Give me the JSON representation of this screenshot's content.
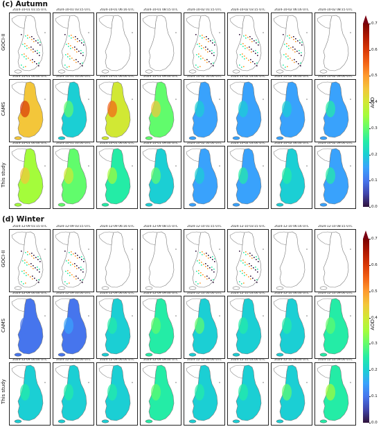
{
  "cbar": {
    "label": "AOD",
    "ticks": [
      "0.0",
      "0.1",
      "0.2",
      "0.3",
      "0.4",
      "0.5",
      "0.6",
      "0.7"
    ],
    "range": [
      0,
      0.7
    ],
    "extend": "max",
    "colormap": [
      "#30123b",
      "#4145ab",
      "#4675ed",
      "#39a2fc",
      "#1bcfd4",
      "#24eca6",
      "#61fc6c",
      "#a4fc3b",
      "#d1e834",
      "#f3c63a",
      "#fe9b2d",
      "#f36315",
      "#d93806",
      "#b11901",
      "#7a0403"
    ]
  },
  "autumn": {
    "title": "(c) Autumn",
    "goci_label": "GOCI-II",
    "cams_label": "CAMS",
    "study_label": "This study",
    "goci_times": [
      "2024-10-01 01:15 UTC",
      "2024-10-01 03:15 UTC",
      "2024-10-01 06:16 UTC",
      "2024-10-01 08:15 UTC",
      "2024-10-02 01:15 UTC",
      "2024-10-02 03:15 UTC",
      "2024-10-02 06:16 UTC",
      "2024-10-02 08:15 UTC"
    ],
    "model_times": [
      "2024-10-01 00:00 UTC",
      "2024-10-01 03:00 UTC",
      "2024-10-01 06:00 UTC",
      "2024-10-01 09:00 UTC",
      "2024-10-02 00:00 UTC",
      "2024-10-02 03:00 UTC",
      "2024-10-02 06:00 UTC",
      "2024-10-02 09:00 UTC"
    ]
  },
  "winter": {
    "title": "(d) Winter",
    "goci_label": "GOCI-II",
    "cams_label": "CAMS",
    "study_label": "This study",
    "goci_times": [
      "2024-12-09 01:15 UTC",
      "2024-12-09 03:15 UTC",
      "2024-12-09 06:16 UTC",
      "2024-12-09 08:15 UTC",
      "2024-12-10 01:15 UTC",
      "2024-12-10 03:15 UTC",
      "2024-12-10 06:16 UTC",
      "2024-12-10 08:15 UTC"
    ],
    "model_times": [
      "2024-12-09 00:00 UTC",
      "2024-12-09 03:00 UTC",
      "2024-12-09 06:00 UTC",
      "2024-12-09 09:00 UTC",
      "2024-12-10 00:00 UTC",
      "2024-12-10 03:00 UTC",
      "2024-12-10 06:00 UTC",
      "2024-12-10 09:00 UTC"
    ]
  },
  "chart_data": {
    "type": "heatmap",
    "panel_grid": "2 seasons x 3 rows (GOCI-II, CAMS, This study) x 8 times",
    "variable": "AOD",
    "color_range": [
      0,
      0.7
    ],
    "approx_mean_aod": {
      "autumn": {
        "goci": [
          0.3,
          0.25,
          null,
          null,
          0.45,
          0.4,
          0.5,
          null
        ],
        "cams": [
          0.45,
          0.22,
          0.42,
          0.32,
          0.13,
          0.14,
          0.15,
          0.17
        ],
        "study": [
          0.35,
          0.3,
          0.25,
          0.22,
          0.16,
          0.17,
          0.18,
          0.17
        ]
      },
      "winter": {
        "goci": [
          0.4,
          0.35,
          null,
          null,
          0.5,
          0.45,
          null,
          null
        ],
        "cams": [
          0.08,
          0.12,
          0.18,
          0.24,
          0.22,
          0.2,
          0.2,
          0.23
        ],
        "study": [
          0.18,
          0.18,
          0.2,
          0.24,
          0.2,
          0.2,
          0.22,
          0.26
        ]
      }
    }
  }
}
